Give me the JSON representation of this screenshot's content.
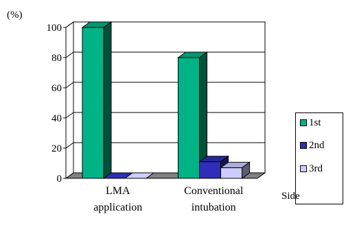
{
  "chart_data": {
    "type": "bar",
    "y_unit_label": "(%)",
    "categories": [
      [
        "LMA",
        "application"
      ],
      [
        "Conventional",
        "intubation"
      ]
    ],
    "series": [
      {
        "name": "1st",
        "values": [
          100,
          80
        ],
        "color": "#00B386"
      },
      {
        "name": "2nd",
        "values": [
          0,
          11
        ],
        "color": "#2E2EB8"
      },
      {
        "name": "3rd",
        "values": [
          0,
          7
        ],
        "color": "#CCCCFF"
      }
    ],
    "ylim": [
      0,
      100
    ],
    "yticks": [
      "0",
      "20",
      "40",
      "60",
      "80",
      "100"
    ],
    "grid": true,
    "legend_position": "right",
    "legend_label": "Side",
    "three_d": true
  }
}
